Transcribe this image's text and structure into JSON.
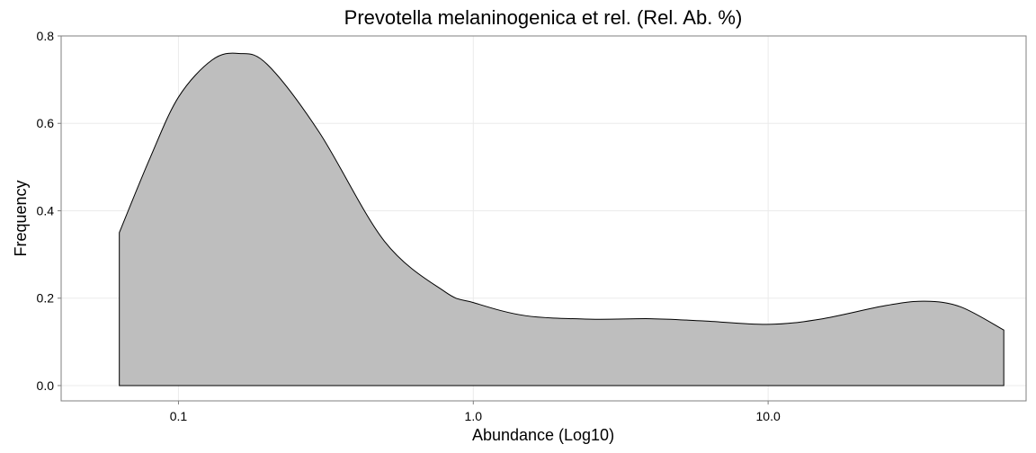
{
  "chart_data": {
    "type": "area",
    "title": "Prevotella melaninogenica et rel. (Rel. Ab. %)",
    "xlabel": "Abundance (Log10)",
    "ylabel": "Frequency",
    "x_scale": "log10",
    "xlim": [
      0.04,
      75
    ],
    "ylim": [
      -0.035,
      0.8
    ],
    "grid": true,
    "x_ticks": [
      {
        "value": 0.1,
        "label": "0.1"
      },
      {
        "value": 1.0,
        "label": "1.0"
      },
      {
        "value": 10.0,
        "label": "10.0"
      }
    ],
    "y_ticks": [
      {
        "value": 0.0,
        "label": "0.0"
      },
      {
        "value": 0.2,
        "label": "0.2"
      },
      {
        "value": 0.4,
        "label": "0.4"
      },
      {
        "value": 0.6,
        "label": "0.6"
      },
      {
        "value": 0.8,
        "label": "0.8"
      }
    ],
    "series": [
      {
        "fill": "#bebebe",
        "stroke": "#000000",
        "x": [
          0.063,
          0.08,
          0.1,
          0.13,
          0.16,
          0.2,
          0.3,
          0.5,
          0.8,
          1.0,
          1.5,
          2.5,
          4.0,
          6.0,
          10.0,
          15.0,
          25.0,
          34.0,
          45.0,
          63.0
        ],
        "y": [
          0.35,
          0.52,
          0.66,
          0.745,
          0.76,
          0.735,
          0.58,
          0.33,
          0.215,
          0.19,
          0.16,
          0.152,
          0.153,
          0.148,
          0.14,
          0.152,
          0.183,
          0.193,
          0.18,
          0.127
        ]
      }
    ]
  }
}
